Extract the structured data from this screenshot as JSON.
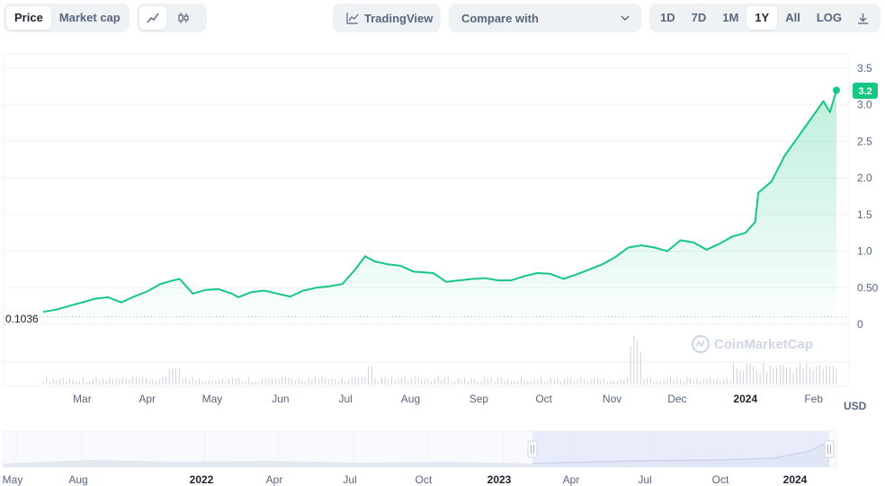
{
  "toolbar": {
    "metric_tabs": [
      {
        "label": "Price",
        "active": true
      },
      {
        "label": "Market cap",
        "active": false
      }
    ],
    "chart_type_icons": [
      "line-chart-icon",
      "candlestick-icon"
    ],
    "tradingview_label": "TradingView",
    "compare_label": "Compare with",
    "ranges": [
      {
        "label": "1D",
        "active": false
      },
      {
        "label": "7D",
        "active": false
      },
      {
        "label": "1M",
        "active": false
      },
      {
        "label": "1Y",
        "active": true
      },
      {
        "label": "All",
        "active": false
      }
    ],
    "log_label": "LOG",
    "download_icon": "download-icon"
  },
  "chart": {
    "current_price_label": "3.2",
    "baseline_label": "0.1036",
    "unit": "USD",
    "watermark": "CoinMarketCap",
    "colors": {
      "line": "#16c784",
      "badge": "#16c784",
      "grid": "#eff2f5"
    }
  },
  "chart_data": {
    "type": "area",
    "y_ticks": [
      "0",
      "0.50",
      "1.0",
      "1.5",
      "2.0",
      "2.5",
      "3.0",
      "3.5"
    ],
    "y_tick_values": [
      0,
      0.5,
      1.0,
      1.5,
      2.0,
      2.5,
      3.0,
      3.5
    ],
    "ylim": [
      0,
      3.5
    ],
    "x_ticks": [
      {
        "label": "Mar",
        "bold": false,
        "pos": 0.6
      },
      {
        "label": "Apr",
        "bold": false,
        "pos": 1.6
      },
      {
        "label": "May",
        "bold": false,
        "pos": 2.6
      },
      {
        "label": "Jun",
        "bold": false,
        "pos": 3.65
      },
      {
        "label": "Jul",
        "bold": false,
        "pos": 4.65
      },
      {
        "label": "Aug",
        "bold": false,
        "pos": 5.65
      },
      {
        "label": "Sep",
        "bold": false,
        "pos": 6.7
      },
      {
        "label": "Oct",
        "bold": false,
        "pos": 7.7
      },
      {
        "label": "Nov",
        "bold": false,
        "pos": 8.75
      },
      {
        "label": "Dec",
        "bold": false,
        "pos": 9.75
      },
      {
        "label": "2024",
        "bold": true,
        "pos": 10.8
      },
      {
        "label": "Feb",
        "bold": false,
        "pos": 11.85
      }
    ],
    "x_range": [
      0,
      12.2
    ],
    "price": [
      [
        0.0,
        0.17
      ],
      [
        0.2,
        0.2
      ],
      [
        0.4,
        0.25
      ],
      [
        0.6,
        0.3
      ],
      [
        0.8,
        0.35
      ],
      [
        1.0,
        0.37
      ],
      [
        1.2,
        0.3
      ],
      [
        1.4,
        0.38
      ],
      [
        1.6,
        0.45
      ],
      [
        1.8,
        0.55
      ],
      [
        2.0,
        0.6
      ],
      [
        2.1,
        0.62
      ],
      [
        2.3,
        0.42
      ],
      [
        2.5,
        0.47
      ],
      [
        2.7,
        0.48
      ],
      [
        2.9,
        0.42
      ],
      [
        3.0,
        0.37
      ],
      [
        3.2,
        0.44
      ],
      [
        3.4,
        0.46
      ],
      [
        3.6,
        0.42
      ],
      [
        3.8,
        0.38
      ],
      [
        4.0,
        0.46
      ],
      [
        4.2,
        0.5
      ],
      [
        4.4,
        0.52
      ],
      [
        4.6,
        0.55
      ],
      [
        4.8,
        0.75
      ],
      [
        4.95,
        0.93
      ],
      [
        5.1,
        0.86
      ],
      [
        5.3,
        0.82
      ],
      [
        5.5,
        0.8
      ],
      [
        5.7,
        0.72
      ],
      [
        6.0,
        0.7
      ],
      [
        6.2,
        0.58
      ],
      [
        6.4,
        0.6
      ],
      [
        6.6,
        0.62
      ],
      [
        6.8,
        0.63
      ],
      [
        7.0,
        0.6
      ],
      [
        7.2,
        0.6
      ],
      [
        7.4,
        0.66
      ],
      [
        7.6,
        0.7
      ],
      [
        7.8,
        0.69
      ],
      [
        8.0,
        0.62
      ],
      [
        8.2,
        0.68
      ],
      [
        8.4,
        0.75
      ],
      [
        8.6,
        0.82
      ],
      [
        8.8,
        0.92
      ],
      [
        9.0,
        1.05
      ],
      [
        9.2,
        1.08
      ],
      [
        9.4,
        1.05
      ],
      [
        9.6,
        1.0
      ],
      [
        9.8,
        1.15
      ],
      [
        10.0,
        1.12
      ],
      [
        10.2,
        1.02
      ],
      [
        10.4,
        1.1
      ],
      [
        10.6,
        1.2
      ],
      [
        10.8,
        1.25
      ],
      [
        10.95,
        1.4
      ],
      [
        11.0,
        1.8
      ],
      [
        11.2,
        1.95
      ],
      [
        11.4,
        2.3
      ],
      [
        11.6,
        2.55
      ],
      [
        11.8,
        2.8
      ],
      [
        12.0,
        3.05
      ],
      [
        12.1,
        2.9
      ],
      [
        12.2,
        3.2
      ]
    ],
    "navigator_x_ticks": [
      "May",
      "Aug",
      "2022",
      "Apr",
      "Jul",
      "Oct",
      "2023",
      "Apr",
      "Jul",
      "Oct",
      "2024"
    ]
  }
}
